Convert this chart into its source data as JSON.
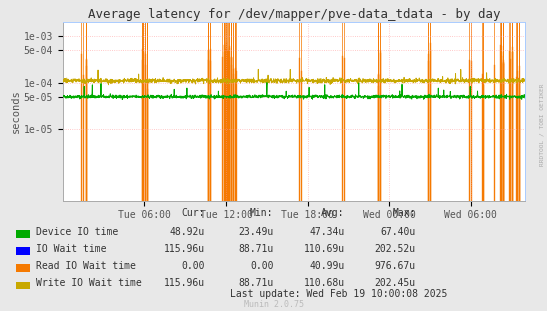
{
  "title": "Average latency for /dev/mapper/pve-data_tdata - by day",
  "ylabel": "seconds",
  "right_label": "RRDTOOL / TOBI OETIKER",
  "watermark": "Munin 2.0.75",
  "background_color": "#e8e8e8",
  "plot_bg_color": "#ffffff",
  "x_ticks": [
    "Tue 06:00",
    "Tue 12:00",
    "Tue 18:00",
    "Wed 00:00",
    "Wed 06:00"
  ],
  "ylim_min": 3e-07,
  "ylim_max": 0.002,
  "y_ticks": [
    1e-05,
    5e-05,
    0.0001,
    0.0005,
    0.001
  ],
  "y_tick_labels": [
    "1e-05",
    "5e-05",
    "1e-04",
    "5e-04",
    "1e-03"
  ],
  "series": [
    {
      "name": "Device IO time",
      "color": "#00aa00",
      "cur": "48.92u",
      "min": "23.49u",
      "avg": "47.34u",
      "max": "67.40u"
    },
    {
      "name": "IO Wait time",
      "color": "#0000ff",
      "cur": "115.96u",
      "min": "88.71u",
      "avg": "110.69u",
      "max": "202.52u"
    },
    {
      "name": "Read IO Wait time",
      "color": "#f57900",
      "cur": "0.00",
      "min": "0.00",
      "avg": "40.99u",
      "max": "976.67u"
    },
    {
      "name": "Write IO Wait time",
      "color": "#c8a800",
      "cur": "115.96u",
      "min": "88.71u",
      "avg": "110.68u",
      "max": "202.45u"
    }
  ],
  "last_update": "Last update: Wed Feb 19 10:00:08 2025",
  "legend_header": [
    "Cur:",
    "Min:",
    "Avg:",
    "Max:"
  ]
}
